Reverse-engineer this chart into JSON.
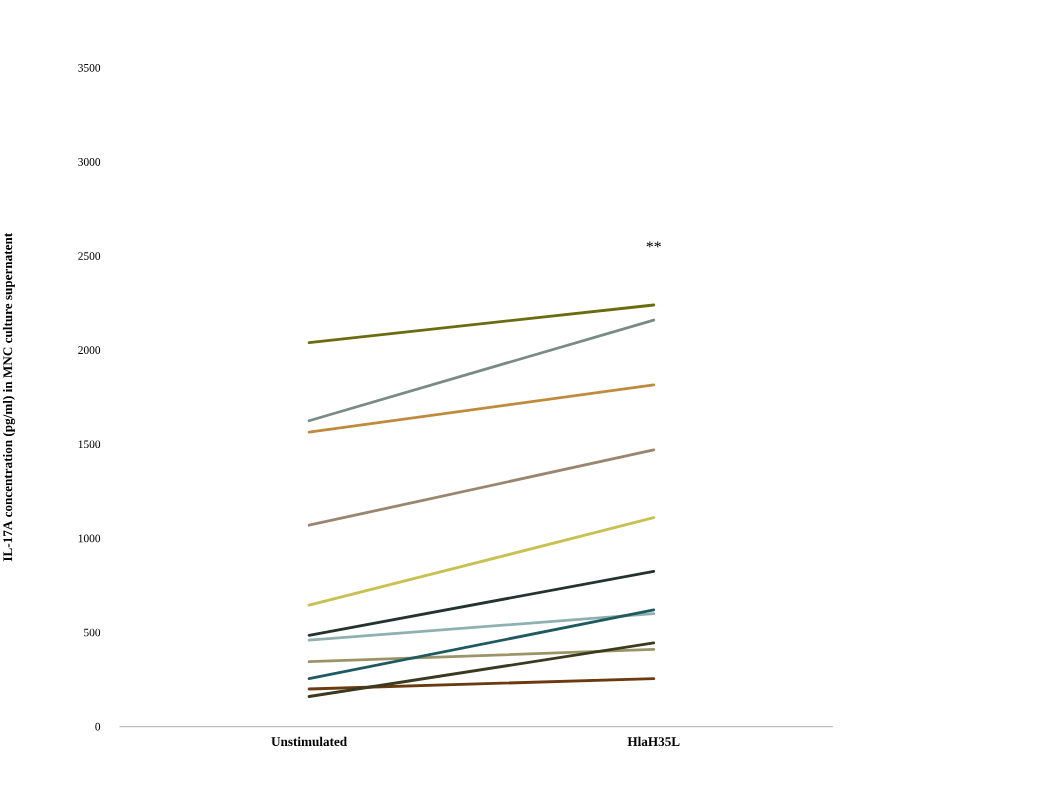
{
  "chart_data": {
    "type": "line",
    "ylabel": "IL-17A concentration (pg/ml) in MNC culture supernatent",
    "categories": [
      "Unstimulated",
      "HlaH35L"
    ],
    "ylim": [
      0,
      3500
    ],
    "yticks": [
      0,
      500,
      1000,
      1500,
      2000,
      2500,
      3000,
      3500
    ],
    "grid": false,
    "marker": "none",
    "line_style": "solid",
    "annotations": [
      "**"
    ],
    "series": [
      {
        "color": "#6b6b0f",
        "values": [
          2040,
          2240
        ]
      },
      {
        "color": "#7a8a85",
        "values": [
          1625,
          2160
        ]
      },
      {
        "color": "#c08a3e",
        "values": [
          1565,
          1815
        ]
      },
      {
        "color": "#9a8670",
        "values": [
          1070,
          1470
        ]
      },
      {
        "color": "#c8c050",
        "values": [
          645,
          1110
        ]
      },
      {
        "color": "#253330",
        "values": [
          485,
          825
        ]
      },
      {
        "color": "#8fb0b0",
        "values": [
          460,
          600
        ]
      },
      {
        "color": "#9a9468",
        "values": [
          345,
          410
        ]
      },
      {
        "color": "#1f5a60",
        "values": [
          255,
          620
        ]
      },
      {
        "color": "#6b3a10",
        "values": [
          200,
          255
        ]
      },
      {
        "color": "#3a3a20",
        "values": [
          160,
          445
        ]
      }
    ]
  }
}
